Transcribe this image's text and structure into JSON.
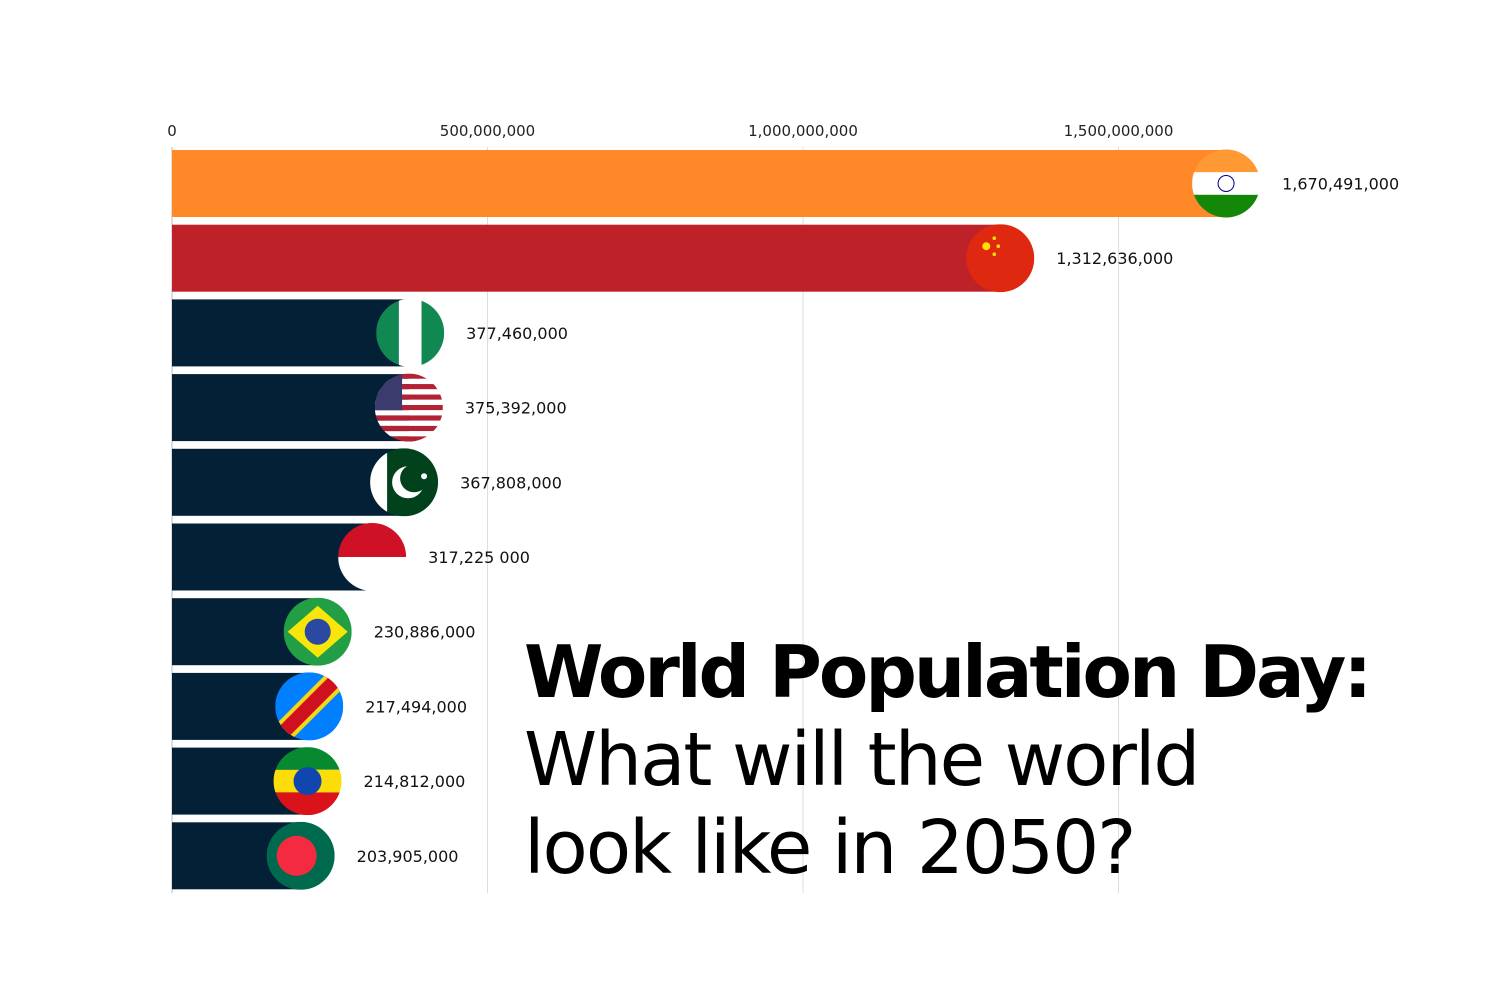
{
  "chart_data": {
    "type": "bar",
    "orientation": "horizontal",
    "title": "",
    "xlim": [
      0,
      1700000000
    ],
    "ticks": [
      0,
      500000000,
      1000000000,
      1500000000
    ],
    "tick_labels": [
      "0",
      "500,000,000",
      "1,000,000,000",
      "1,500,000,000"
    ],
    "grid": true,
    "categories": [
      "India",
      "China",
      "Nigeria",
      "United States",
      "Pakistan",
      "Indonesia",
      "Brazil",
      "DR Congo",
      "Ethiopia",
      "Bangladesh"
    ],
    "values": [
      1670491000,
      1312636000,
      377460000,
      375392000,
      367808000,
      317225000,
      230886000,
      217494000,
      214812000,
      203905000
    ],
    "value_labels": [
      "1,670,491,000",
      "1,312,636,000",
      "377,460,000",
      "375,392,000",
      "367,808,000",
      "317,225 000",
      "230,886,000",
      "217,494,000",
      "214,812,000",
      "203,905,000"
    ],
    "bar_colors": [
      "#FF8828",
      "#BE2228",
      "#042037",
      "#042037",
      "#042037",
      "#042037",
      "#042037",
      "#042037",
      "#042037",
      "#042037"
    ],
    "flag_icons": [
      "india-flag-icon",
      "china-flag-icon",
      "nigeria-flag-icon",
      "usa-flag-icon",
      "pakistan-flag-icon",
      "indonesia-flag-icon",
      "brazil-flag-icon",
      "drc-flag-icon",
      "ethiopia-flag-icon",
      "bangladesh-flag-icon"
    ]
  },
  "headline": {
    "line1": "World Population Day:",
    "line2": "What will the world",
    "line3": "look like in 2050?"
  }
}
